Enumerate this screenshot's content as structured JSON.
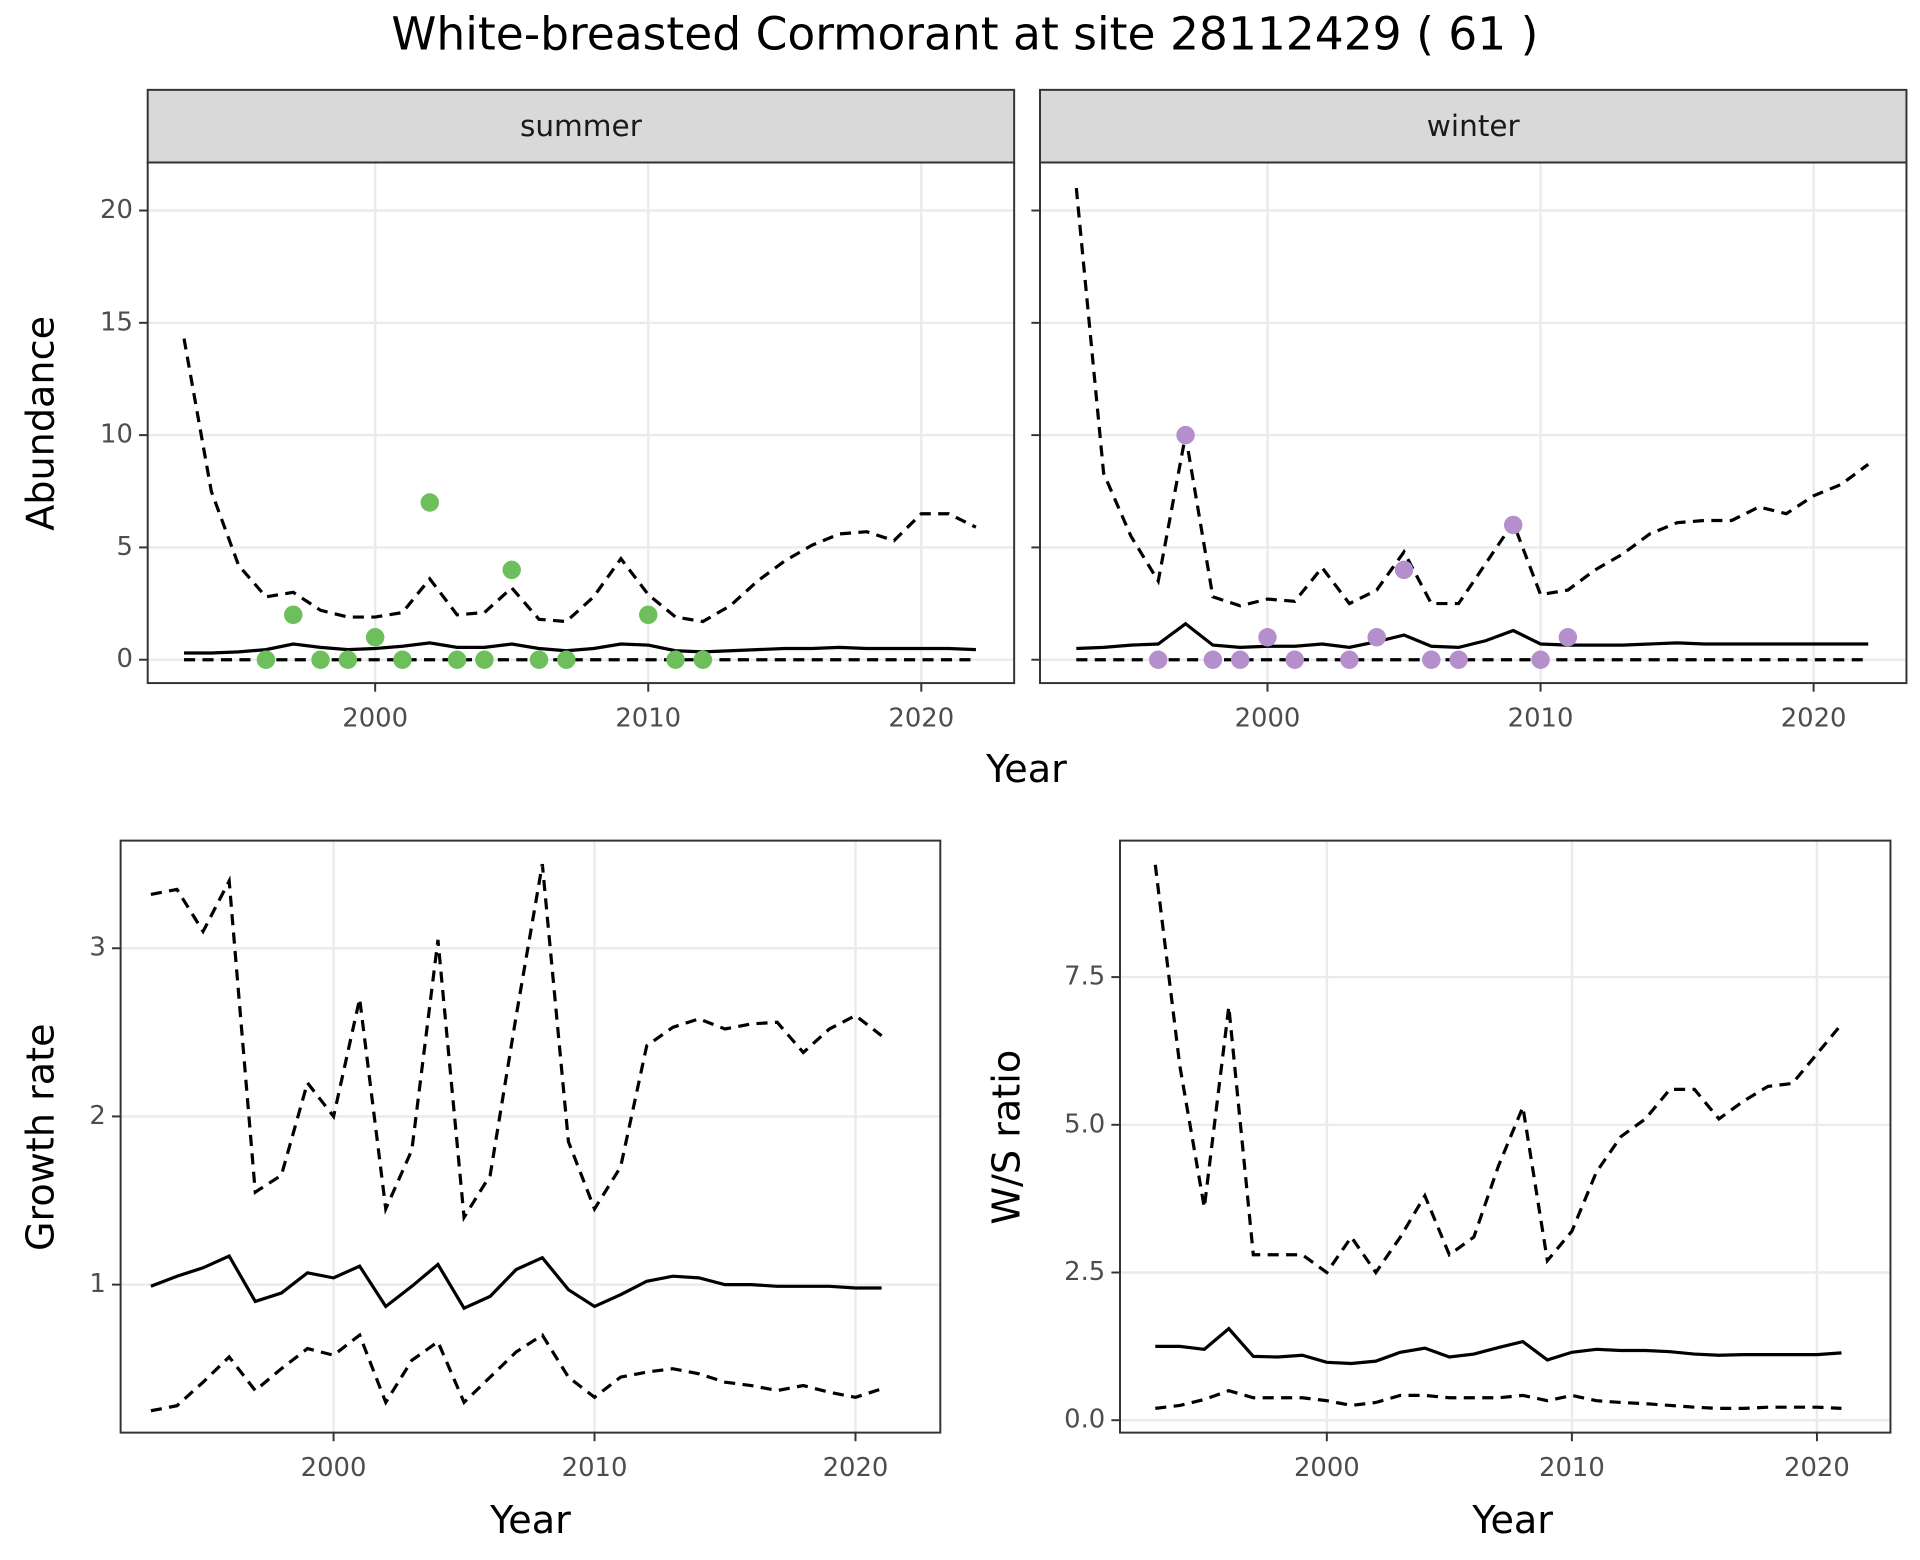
{
  "title": "White-breasted Cormorant at site 28112429 ( 61 )",
  "chart_data": [
    {
      "type": "line",
      "xlabel": "Year",
      "ylabel": "Abundance",
      "x": [
        1993,
        1994,
        1995,
        1996,
        1997,
        1998,
        1999,
        2000,
        2001,
        2002,
        2003,
        2004,
        2005,
        2006,
        2007,
        2008,
        2009,
        2010,
        2011,
        2012,
        2013,
        2014,
        2015,
        2016,
        2017,
        2018,
        2019,
        2020,
        2021,
        2022
      ],
      "xlim": [
        1991.67,
        2023.4
      ],
      "ylim": [
        -1.04,
        22.14
      ],
      "xticks": [
        2000,
        2010,
        2020
      ],
      "yticks": [
        0,
        5,
        10,
        15,
        20
      ],
      "grid": true,
      "facets": [
        {
          "label": "summer",
          "series": [
            {
              "color": "#000000",
              "dash": true,
              "values": [
                14.3,
                7.5,
                4.2,
                2.8,
                3.0,
                2.2,
                1.9,
                1.9,
                2.1,
                3.6,
                2.0,
                2.1,
                3.2,
                1.8,
                1.7,
                2.8,
                4.5,
                2.9,
                1.9,
                1.7,
                2.4,
                3.5,
                4.4,
                5.1,
                5.6,
                5.7,
                5.3,
                6.5,
                6.5,
                5.9
              ]
            },
            {
              "color": "#000000",
              "dash": false,
              "values": [
                0.3,
                0.3,
                0.35,
                0.45,
                0.7,
                0.55,
                0.45,
                0.5,
                0.6,
                0.75,
                0.55,
                0.55,
                0.7,
                0.5,
                0.4,
                0.5,
                0.7,
                0.65,
                0.4,
                0.35,
                0.4,
                0.45,
                0.5,
                0.5,
                0.55,
                0.5,
                0.5,
                0.5,
                0.5,
                0.45
              ]
            },
            {
              "color": "#000000",
              "dash": true,
              "values": [
                0,
                0,
                0,
                0,
                0,
                0,
                0,
                0,
                0,
                0,
                0,
                0,
                0,
                0,
                0,
                0,
                0,
                0,
                0,
                0,
                0,
                0,
                0,
                0,
                0,
                0,
                0,
                0,
                0,
                0
              ]
            }
          ],
          "points": {
            "color": "#6dbf5c",
            "x": [
              1996,
              1997,
              1998,
              1999,
              2000,
              2001,
              2002,
              2003,
              2004,
              2005,
              2006,
              2007,
              2010,
              2011,
              2012
            ],
            "values": [
              0,
              2,
              0,
              0,
              1,
              0,
              7,
              0,
              0,
              4,
              0,
              0,
              2,
              0,
              0
            ]
          }
        },
        {
          "label": "winter",
          "series": [
            {
              "color": "#000000",
              "dash": true,
              "values": [
                21,
                8.3,
                5.5,
                3.5,
                10,
                2.8,
                2.4,
                2.7,
                2.6,
                4.1,
                2.5,
                3.1,
                4.8,
                2.5,
                2.5,
                4.3,
                6.1,
                2.9,
                3.1,
                4.0,
                4.7,
                5.6,
                6.1,
                6.2,
                6.2,
                6.8,
                6.5,
                7.3,
                7.8,
                8.7
              ]
            },
            {
              "color": "#000000",
              "dash": false,
              "values": [
                0.5,
                0.55,
                0.65,
                0.7,
                1.6,
                0.65,
                0.55,
                0.6,
                0.6,
                0.7,
                0.55,
                0.8,
                1.1,
                0.6,
                0.55,
                0.85,
                1.3,
                0.7,
                0.65,
                0.65,
                0.65,
                0.7,
                0.75,
                0.7,
                0.7,
                0.7,
                0.7,
                0.7,
                0.7,
                0.7
              ]
            },
            {
              "color": "#000000",
              "dash": true,
              "values": [
                0,
                0,
                0,
                0,
                0,
                0,
                0,
                0,
                0,
                0,
                0,
                0,
                0,
                0,
                0,
                0,
                0,
                0,
                0,
                0,
                0,
                0,
                0,
                0,
                0,
                0,
                0,
                0,
                0,
                0
              ]
            }
          ],
          "points": {
            "color": "#b48fcc",
            "x": [
              1996,
              1997,
              1998,
              1999,
              2000,
              2001,
              2003,
              2004,
              2005,
              2006,
              2007,
              2009,
              2010,
              2011
            ],
            "values": [
              0,
              10,
              0,
              0,
              1,
              0,
              0,
              1,
              4,
              0,
              0,
              6,
              0,
              1
            ]
          }
        }
      ]
    },
    {
      "type": "line",
      "xlabel": "Year",
      "ylabel": "Growth rate",
      "x": [
        1993,
        1994,
        1995,
        1996,
        1997,
        1998,
        1999,
        2000,
        2001,
        2002,
        2003,
        2004,
        2005,
        2006,
        2007,
        2008,
        2009,
        2010,
        2011,
        2012,
        2013,
        2014,
        2015,
        2016,
        2017,
        2018,
        2019,
        2020,
        2021
      ],
      "xlim": [
        1991.84,
        2023.25
      ],
      "ylim": [
        0.12,
        3.64
      ],
      "xticks": [
        2000,
        2010,
        2020
      ],
      "yticks": [
        1,
        2,
        3
      ],
      "grid": true,
      "series": [
        {
          "color": "#000000",
          "dash": true,
          "values": [
            3.32,
            3.35,
            3.1,
            3.4,
            1.55,
            1.65,
            2.2,
            2.0,
            2.7,
            1.45,
            1.8,
            3.05,
            1.4,
            1.65,
            2.6,
            3.5,
            1.85,
            1.45,
            1.7,
            2.42,
            2.53,
            2.58,
            2.52,
            2.55,
            2.56,
            2.38,
            2.52,
            2.6,
            2.48
          ]
        },
        {
          "color": "#000000",
          "dash": false,
          "values": [
            0.99,
            1.05,
            1.1,
            1.17,
            0.9,
            0.95,
            1.07,
            1.04,
            1.11,
            0.87,
            0.99,
            1.12,
            0.86,
            0.93,
            1.09,
            1.16,
            0.97,
            0.87,
            0.94,
            1.02,
            1.05,
            1.04,
            1.0,
            1.0,
            0.99,
            0.99,
            0.99,
            0.98,
            0.98
          ]
        },
        {
          "color": "#000000",
          "dash": true,
          "values": [
            0.25,
            0.28,
            0.42,
            0.57,
            0.37,
            0.5,
            0.62,
            0.58,
            0.7,
            0.3,
            0.55,
            0.66,
            0.3,
            0.45,
            0.6,
            0.7,
            0.45,
            0.33,
            0.45,
            0.48,
            0.5,
            0.47,
            0.42,
            0.4,
            0.37,
            0.4,
            0.36,
            0.33,
            0.38
          ]
        }
      ]
    },
    {
      "type": "line",
      "xlabel": "Year",
      "ylabel": "W/S ratio",
      "x": [
        1993,
        1994,
        1995,
        1996,
        1997,
        1998,
        1999,
        2000,
        2001,
        2002,
        2003,
        2004,
        2005,
        2006,
        2007,
        2008,
        2009,
        2010,
        2011,
        2012,
        2013,
        2014,
        2015,
        2016,
        2017,
        2018,
        2019,
        2020,
        2021
      ],
      "xlim": [
        1991.56,
        2023.0
      ],
      "ylim": [
        -0.21,
        9.81
      ],
      "xticks": [
        2000,
        2010,
        2020
      ],
      "yticks": [
        {
          "value": 0,
          "label": "0.0"
        },
        2.5,
        {
          "value": 5,
          "label": "5.0"
        },
        7.5
      ],
      "grid": true,
      "series": [
        {
          "color": "#000000",
          "dash": true,
          "values": [
            9.4,
            6.0,
            3.6,
            7.0,
            2.8,
            2.8,
            2.8,
            2.5,
            3.1,
            2.5,
            3.1,
            3.8,
            2.8,
            3.1,
            4.3,
            5.3,
            2.7,
            3.2,
            4.2,
            4.8,
            5.1,
            5.6,
            5.6,
            5.1,
            5.4,
            5.65,
            5.7,
            6.2,
            6.7
          ]
        },
        {
          "color": "#000000",
          "dash": false,
          "values": [
            1.25,
            1.25,
            1.2,
            1.55,
            1.08,
            1.07,
            1.1,
            0.98,
            0.96,
            1.0,
            1.15,
            1.22,
            1.07,
            1.12,
            1.23,
            1.33,
            1.02,
            1.15,
            1.2,
            1.18,
            1.18,
            1.16,
            1.12,
            1.1,
            1.11,
            1.11,
            1.11,
            1.11,
            1.14
          ]
        },
        {
          "color": "#000000",
          "dash": true,
          "values": [
            0.2,
            0.25,
            0.35,
            0.5,
            0.38,
            0.38,
            0.38,
            0.33,
            0.25,
            0.3,
            0.42,
            0.42,
            0.38,
            0.38,
            0.38,
            0.42,
            0.33,
            0.42,
            0.33,
            0.3,
            0.28,
            0.25,
            0.22,
            0.2,
            0.2,
            0.22,
            0.22,
            0.22,
            0.2
          ]
        }
      ]
    }
  ]
}
